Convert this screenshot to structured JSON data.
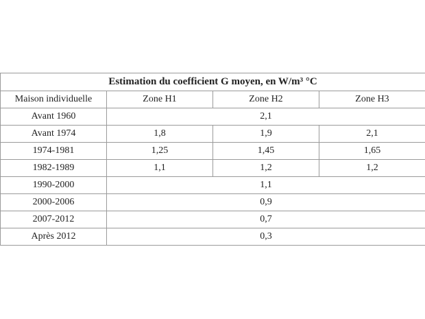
{
  "table": {
    "title": "Estimation du coefficient G moyen, en W/m³ °C",
    "header": [
      "Maison individuelle",
      "Zone H1",
      "Zone H2",
      "Zone H3"
    ],
    "rows": [
      [
        "Avant 1960",
        "2,1"
      ],
      [
        "Avant 1974",
        "1,8",
        "1,9",
        "2,1"
      ],
      [
        "1974-1981",
        "1,25",
        "1,45",
        "1,65"
      ],
      [
        "1982-1989",
        "1,1",
        "1,2",
        "1,2"
      ],
      [
        "1990-2000",
        "1,1"
      ],
      [
        "2000-2006",
        "0,9"
      ],
      [
        "2007-2012",
        "0,7"
      ],
      [
        "Après 2012",
        "0,3"
      ]
    ]
  }
}
